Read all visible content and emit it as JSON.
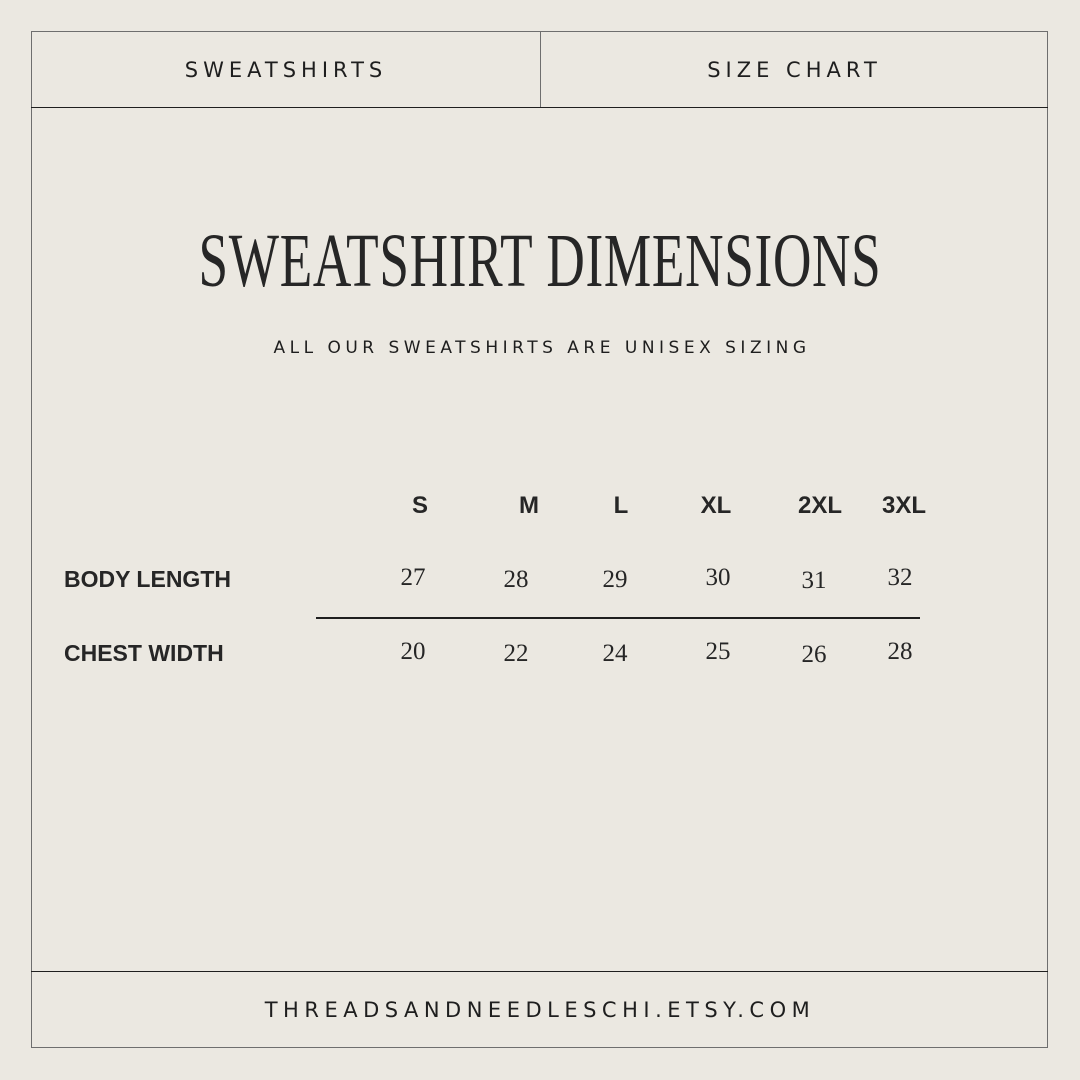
{
  "header": {
    "left_tab": "SWEATSHIRTS",
    "right_tab": "SIZE CHART"
  },
  "title": "SWEATSHIRT DIMENSIONS",
  "subtitle": "ALL OUR SWEATSHIRTS ARE UNISEX SIZING",
  "table": {
    "sizes": [
      "S",
      "M",
      "L",
      "XL",
      "2XL",
      "3XL"
    ],
    "rows": [
      {
        "label": "BODY LENGTH",
        "values": [
          "27",
          "28",
          "29",
          "30",
          "31",
          "32"
        ]
      },
      {
        "label": "CHEST WIDTH",
        "values": [
          "20",
          "22",
          "24",
          "25",
          "26",
          "28"
        ]
      }
    ]
  },
  "footer": "THREADSANDNEEDLESCHI.ETSY.COM",
  "colors": {
    "background": "#ebe8e1",
    "text": "#262626",
    "border": "#6e6e6e"
  }
}
